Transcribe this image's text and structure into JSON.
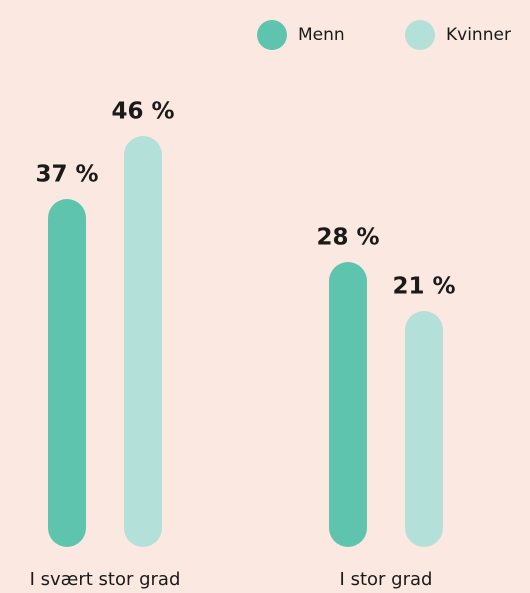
{
  "chart_data": {
    "type": "bar",
    "categories": [
      "I svært stor grad",
      "I stor grad"
    ],
    "series": [
      {
        "name": "Menn",
        "color": "#5ec4ae",
        "values": [
          37,
          28
        ],
        "value_labels": [
          "37 %",
          "28 %"
        ]
      },
      {
        "name": "Kvinner",
        "color": "#b3e0d8",
        "values": [
          46,
          21
        ],
        "value_labels": [
          "46 %",
          "21 %"
        ]
      }
    ],
    "legend": "top-right"
  }
}
